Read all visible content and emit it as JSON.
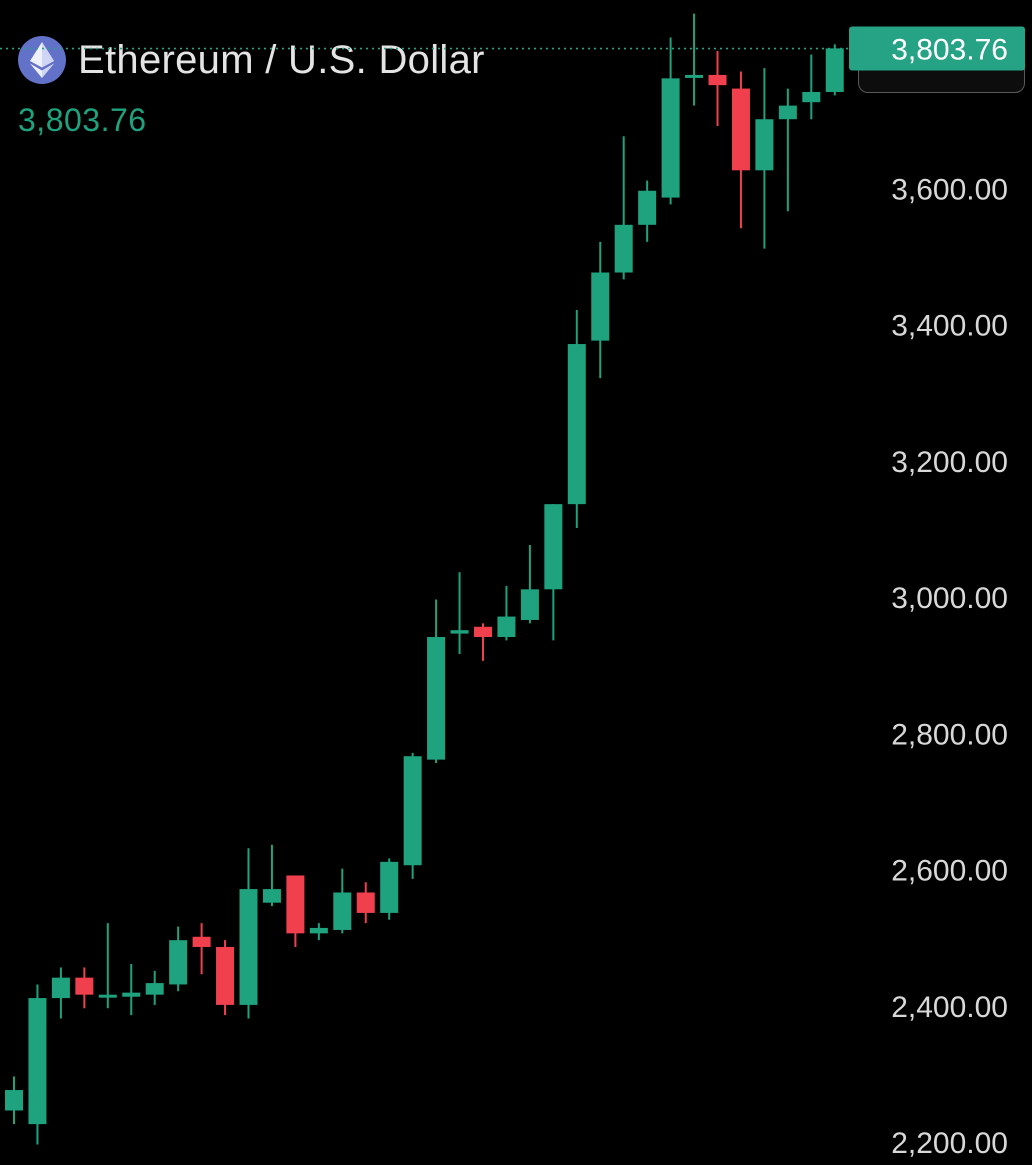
{
  "header": {
    "title": "Ethereum / U.S. Dollar",
    "last_price": "3,803.76"
  },
  "currency_select": {
    "selected": "USD"
  },
  "icons": {
    "logo": "ethereum-icon",
    "dropdown": "chevron-down-icon"
  },
  "colors": {
    "background": "#000000",
    "up": "#1fa37f",
    "down": "#f0404e",
    "price_line": "#26a384",
    "axis_text": "#d8d8d8",
    "logo_bg": "#6272c9"
  },
  "chart_data": {
    "type": "candlestick",
    "title": "Ethereum / U.S. Dollar",
    "last_price": 3803.76,
    "last_price_label": "3,803.76",
    "ylim": [
      2165,
      3875
    ],
    "y_ticks": [
      2200,
      2400,
      2600,
      2800,
      3000,
      3200,
      3400,
      3600
    ],
    "y_tick_labels": [
      "2,200.00",
      "2,400.00",
      "2,600.00",
      "2,800.00",
      "3,000.00",
      "3,200.00",
      "3,400.00",
      "3,600.00"
    ],
    "grid": false,
    "candles": [
      {
        "open": 2245,
        "high": 2295,
        "low": 2225,
        "close": 2275
      },
      {
        "open": 2225,
        "high": 2430,
        "low": 2195,
        "close": 2410
      },
      {
        "open": 2410,
        "high": 2455,
        "low": 2380,
        "close": 2440
      },
      {
        "open": 2440,
        "high": 2455,
        "low": 2395,
        "close": 2415
      },
      {
        "open": 2415,
        "high": 2520,
        "low": 2395,
        "close": 2415
      },
      {
        "open": 2412,
        "high": 2460,
        "low": 2385,
        "close": 2418
      },
      {
        "open": 2415,
        "high": 2450,
        "low": 2400,
        "close": 2432
      },
      {
        "open": 2430,
        "high": 2515,
        "low": 2420,
        "close": 2495
      },
      {
        "open": 2500,
        "high": 2520,
        "low": 2445,
        "close": 2485
      },
      {
        "open": 2485,
        "high": 2495,
        "low": 2385,
        "close": 2400
      },
      {
        "open": 2400,
        "high": 2630,
        "low": 2380,
        "close": 2570
      },
      {
        "open": 2550,
        "high": 2635,
        "low": 2545,
        "close": 2570
      },
      {
        "open": 2590,
        "high": 2590,
        "low": 2485,
        "close": 2505
      },
      {
        "open": 2505,
        "high": 2520,
        "low": 2495,
        "close": 2513
      },
      {
        "open": 2510,
        "high": 2600,
        "low": 2505,
        "close": 2565
      },
      {
        "open": 2565,
        "high": 2580,
        "low": 2520,
        "close": 2535
      },
      {
        "open": 2535,
        "high": 2615,
        "low": 2525,
        "close": 2610
      },
      {
        "open": 2605,
        "high": 2770,
        "low": 2585,
        "close": 2765
      },
      {
        "open": 2760,
        "high": 2995,
        "low": 2755,
        "close": 2940
      },
      {
        "open": 2945,
        "high": 3035,
        "low": 2915,
        "close": 2950
      },
      {
        "open": 2955,
        "high": 2960,
        "low": 2905,
        "close": 2940
      },
      {
        "open": 2940,
        "high": 3015,
        "low": 2935,
        "close": 2970
      },
      {
        "open": 2965,
        "high": 3075,
        "low": 2960,
        "close": 3010
      },
      {
        "open": 3010,
        "high": 3135,
        "low": 2935,
        "close": 3135
      },
      {
        "open": 3135,
        "high": 3420,
        "low": 3100,
        "close": 3370
      },
      {
        "open": 3375,
        "high": 3520,
        "low": 3320,
        "close": 3475
      },
      {
        "open": 3475,
        "high": 3675,
        "low": 3465,
        "close": 3545
      },
      {
        "open": 3545,
        "high": 3610,
        "low": 3520,
        "close": 3595
      },
      {
        "open": 3585,
        "high": 3820,
        "low": 3575,
        "close": 3760
      },
      {
        "open": 3765,
        "high": 3855,
        "low": 3720,
        "close": 3765
      },
      {
        "open": 3765,
        "high": 3800,
        "low": 3690,
        "close": 3750
      },
      {
        "open": 3745,
        "high": 3770,
        "low": 3540,
        "close": 3625
      },
      {
        "open": 3625,
        "high": 3775,
        "low": 3510,
        "close": 3700
      },
      {
        "open": 3700,
        "high": 3745,
        "low": 3565,
        "close": 3720
      },
      {
        "open": 3725,
        "high": 3795,
        "low": 3700,
        "close": 3740
      },
      {
        "open": 3740,
        "high": 3810,
        "low": 3735,
        "close": 3804
      }
    ]
  }
}
